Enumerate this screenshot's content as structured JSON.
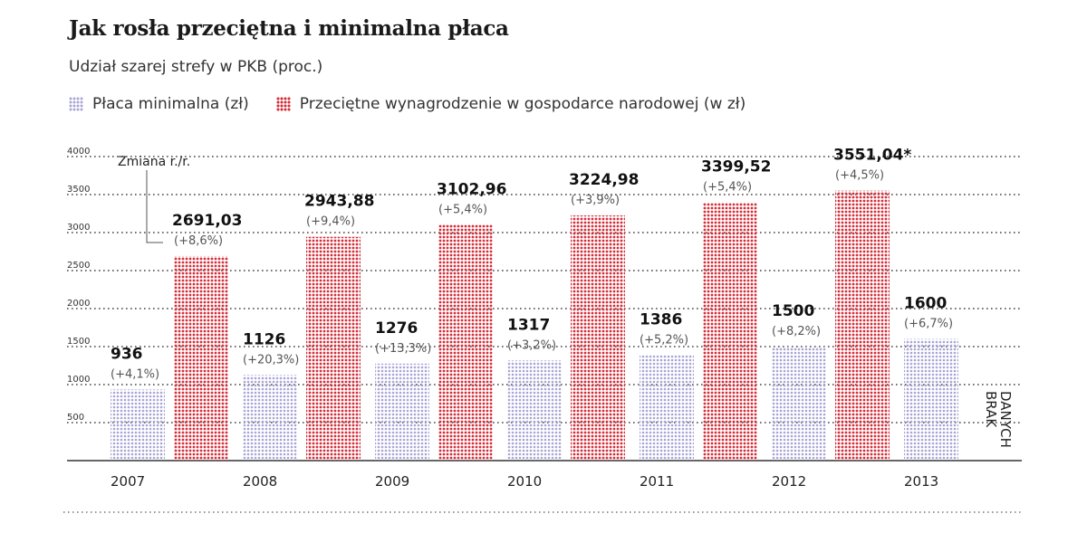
{
  "title": "Jak rosła przeciętna i minimalna płaca",
  "subtitle": "Udział szarej strefy w PKB (proc.)",
  "legend": {
    "min_label": "Płaca minimalna (zł)",
    "avg_label": "Przeciętne wynagrodzenie w gospodarce narodowej (w zł)"
  },
  "annotation": "Zmiana r./r.",
  "no_data_label": [
    "BRAK",
    "DANYCH"
  ],
  "colors": {
    "min": "#a9a4d6",
    "avg": "#d42e3a",
    "grid": "#444444"
  },
  "chart_data": {
    "type": "bar",
    "categories": [
      "2007",
      "2008",
      "2009",
      "2010",
      "2011",
      "2012",
      "2013"
    ],
    "ylim": [
      0,
      4000
    ],
    "yticks": [
      500,
      1000,
      1500,
      2000,
      2500,
      3000,
      3500,
      4000
    ],
    "series": [
      {
        "name": "Płaca minimalna (zł)",
        "values": [
          936,
          1126,
          1276,
          1317,
          1386,
          1500,
          1600
        ],
        "labels": [
          "936",
          "1126",
          "1276",
          "1317",
          "1386",
          "1500",
          "1600"
        ],
        "changes": [
          "(+4,1%)",
          "(+20,3%)",
          "(+13,3%)",
          "(+3,2%)",
          "(+5,2%)",
          "(+8,2%)",
          "(+6,7%)"
        ]
      },
      {
        "name": "Przeciętne wynagrodzenie w gospodarce narodowej (w zł)",
        "values": [
          2691.03,
          2943.88,
          3102.96,
          3224.98,
          3399.52,
          3551.04,
          null
        ],
        "labels": [
          "2691,03",
          "2943,88",
          "3102,96",
          "3224,98",
          "3399,52",
          "3551,04*",
          null
        ],
        "changes": [
          "(+8,6%)",
          "(+9,4%)",
          "(+5,4%)",
          "(+3,9%)",
          "(+5,4%)",
          "(+4,5%)",
          null
        ]
      }
    ]
  }
}
